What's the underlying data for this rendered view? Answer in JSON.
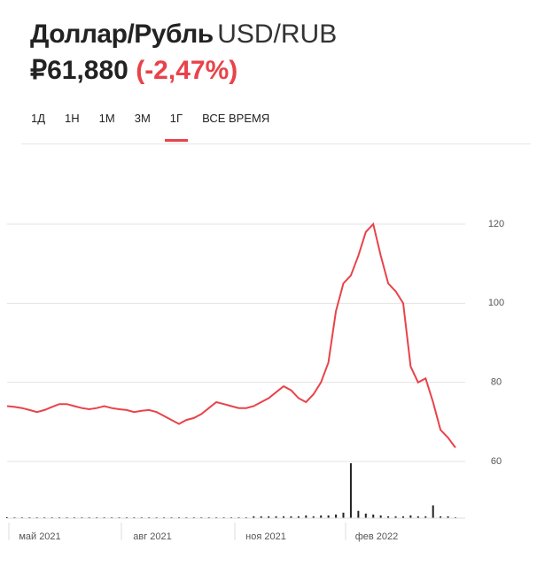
{
  "header": {
    "title": "Доллар/Рубль",
    "ticker": "USD/RUB",
    "price": "₽61,880",
    "change": "(-2,47%)"
  },
  "tabs": [
    "1Д",
    "1Н",
    "1М",
    "3М",
    "1Г",
    "ВСЕ ВРЕМЯ"
  ],
  "active_tab": 4,
  "chart_data": {
    "type": "line",
    "color": "#e8434a",
    "x_labels": [
      "май 2021",
      "авг 2021",
      "ноя 2021",
      "фев 2022"
    ],
    "values": [
      74,
      73.8,
      73.5,
      73,
      72.5,
      73,
      73.8,
      74.5,
      74.5,
      74,
      73.5,
      73.2,
      73.5,
      74,
      73.5,
      73.2,
      73,
      72.5,
      72.8,
      73,
      72.5,
      71.5,
      70.5,
      69.5,
      70.5,
      71,
      72,
      73.5,
      75,
      74.5,
      74,
      73.5,
      73.5,
      74,
      75,
      76,
      77.5,
      79,
      78,
      76,
      75,
      77,
      80,
      85,
      98,
      105,
      107,
      112,
      118,
      120,
      112,
      105,
      103,
      100,
      84,
      80,
      81,
      75,
      68,
      66,
      63.5
    ],
    "volume": [
      1,
      1,
      1,
      1,
      1,
      1,
      1,
      1,
      1,
      1,
      1,
      1,
      1,
      1,
      1,
      1,
      1,
      1,
      1,
      1,
      1,
      1,
      1,
      1,
      1,
      1,
      1,
      1,
      1,
      1,
      1,
      1,
      1,
      2,
      2,
      2,
      2,
      2,
      2,
      2,
      3,
      2,
      3,
      3,
      4,
      6,
      60,
      8,
      5,
      4,
      3,
      2,
      2,
      2,
      3,
      2,
      2,
      14,
      2,
      2,
      1
    ],
    "ylim": [
      60,
      120
    ],
    "yticks": [
      60,
      80,
      100,
      120
    ],
    "grid": true
  }
}
